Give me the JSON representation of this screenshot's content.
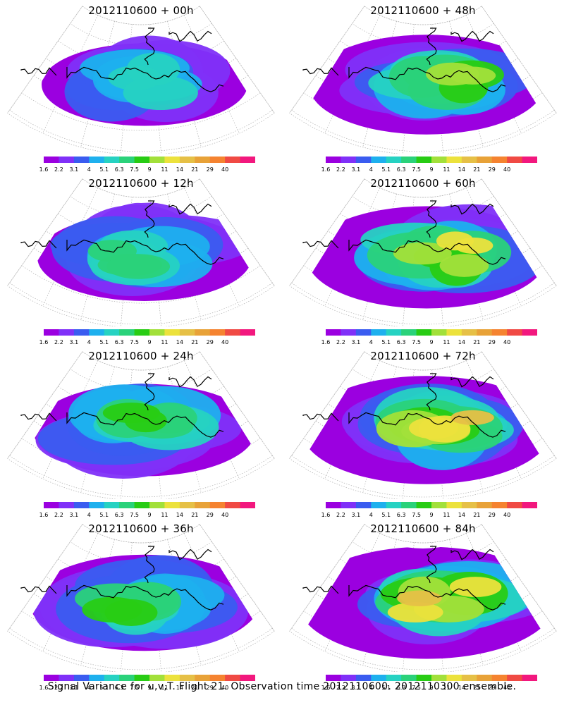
{
  "colors": [
    "#9b00e0",
    "#8030f8",
    "#3a5cf0",
    "#1eb0ee",
    "#26d2c2",
    "#2ad27a",
    "#28cc14",
    "#a2e03a",
    "#ece23c",
    "#e6c046",
    "#e8a238",
    "#f58330",
    "#f04a44",
    "#f2187e"
  ],
  "colorbar_levels": [
    "1.6",
    "2.2",
    "3.1",
    "4",
    "5.1",
    "6.3",
    "7.5",
    "9",
    "11",
    "14",
    "21",
    "29",
    "40"
  ],
  "panels": [
    {
      "title": "2012110600 + 00h",
      "intensity": 0.1
    },
    {
      "title": "2012110600 + 48h",
      "intensity": 0.45
    },
    {
      "title": "2012110600 + 12h",
      "intensity": 0.2
    },
    {
      "title": "2012110600 + 60h",
      "intensity": 0.5
    },
    {
      "title": "2012110600 + 24h",
      "intensity": 0.3
    },
    {
      "title": "2012110600 + 72h",
      "intensity": 0.62
    },
    {
      "title": "2012110600 + 36h",
      "intensity": 0.38
    },
    {
      "title": "2012110600 + 84h",
      "intensity": 0.7
    }
  ],
  "caption": "Signal Variance for u,v,T. Flight 21. Observation time 2012110600. 2012110300 ensemble."
}
